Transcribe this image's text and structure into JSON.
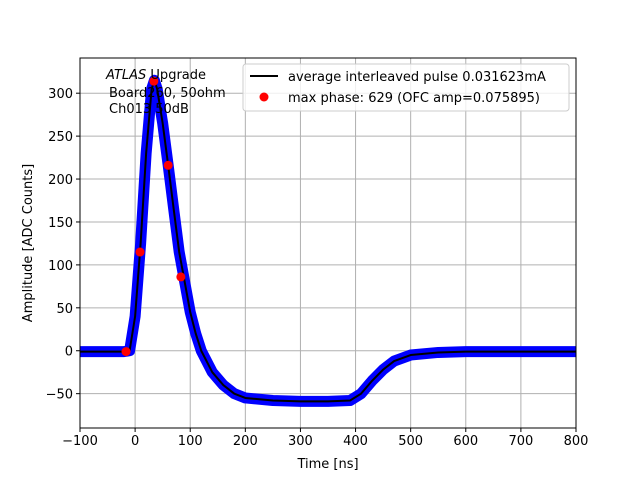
{
  "chart_data": {
    "type": "line",
    "title": "",
    "xlabel": "Time [ns]",
    "ylabel": "Amplitude [ADC Counts]",
    "xlim": [
      -100,
      800
    ],
    "ylim": [
      -90,
      341
    ],
    "xticks": [
      -100,
      0,
      100,
      200,
      300,
      400,
      500,
      600,
      700,
      800
    ],
    "yticks": [
      -50,
      0,
      50,
      100,
      150,
      200,
      250,
      300
    ],
    "grid": true,
    "legend_position": "top-right",
    "annotation": {
      "italic": "ATLAS",
      "line1": "Upgrade",
      "line2": "Board260, 50ohm",
      "line3": "Ch013 50dB"
    },
    "series": [
      {
        "name": "",
        "kind": "scatter-band",
        "color": "#0000ff",
        "x": [
          -100,
          -20,
          -10,
          0,
          10,
          20,
          30,
          35,
          40,
          50,
          60,
          70,
          80,
          90,
          100,
          110,
          120,
          140,
          160,
          180,
          200,
          250,
          300,
          350,
          390,
          410,
          430,
          450,
          470,
          500,
          550,
          600,
          700,
          800
        ],
        "y": [
          -1,
          -1,
          0,
          40,
          125,
          230,
          305,
          315,
          305,
          265,
          216,
          165,
          115,
          80,
          45,
          20,
          0,
          -25,
          -40,
          -50,
          -55,
          -58,
          -59,
          -59,
          -58,
          -50,
          -35,
          -22,
          -12,
          -5,
          -2,
          -1,
          -1,
          -1
        ]
      },
      {
        "name": "average interleaved pulse 0.031623mA",
        "kind": "line",
        "color": "#000000",
        "x": [
          -100,
          -20,
          -10,
          0,
          10,
          20,
          30,
          35,
          40,
          50,
          60,
          70,
          80,
          90,
          100,
          110,
          120,
          140,
          160,
          180,
          200,
          250,
          300,
          350,
          390,
          410,
          430,
          450,
          470,
          500,
          550,
          600,
          700,
          800
        ],
        "y": [
          -1,
          -1,
          0,
          40,
          125,
          230,
          305,
          315,
          305,
          265,
          216,
          165,
          115,
          80,
          45,
          20,
          0,
          -25,
          -40,
          -50,
          -55,
          -58,
          -59,
          -59,
          -58,
          -50,
          -35,
          -22,
          -12,
          -5,
          -2,
          -1,
          -1,
          -1
        ]
      },
      {
        "name": "max phase: 629 (OFC amp=0.075895)",
        "kind": "scatter",
        "color": "#ff0000",
        "x": [
          -16.5,
          8.9,
          34,
          60,
          83
        ],
        "y": [
          -1,
          115,
          314,
          216,
          86
        ]
      }
    ]
  }
}
